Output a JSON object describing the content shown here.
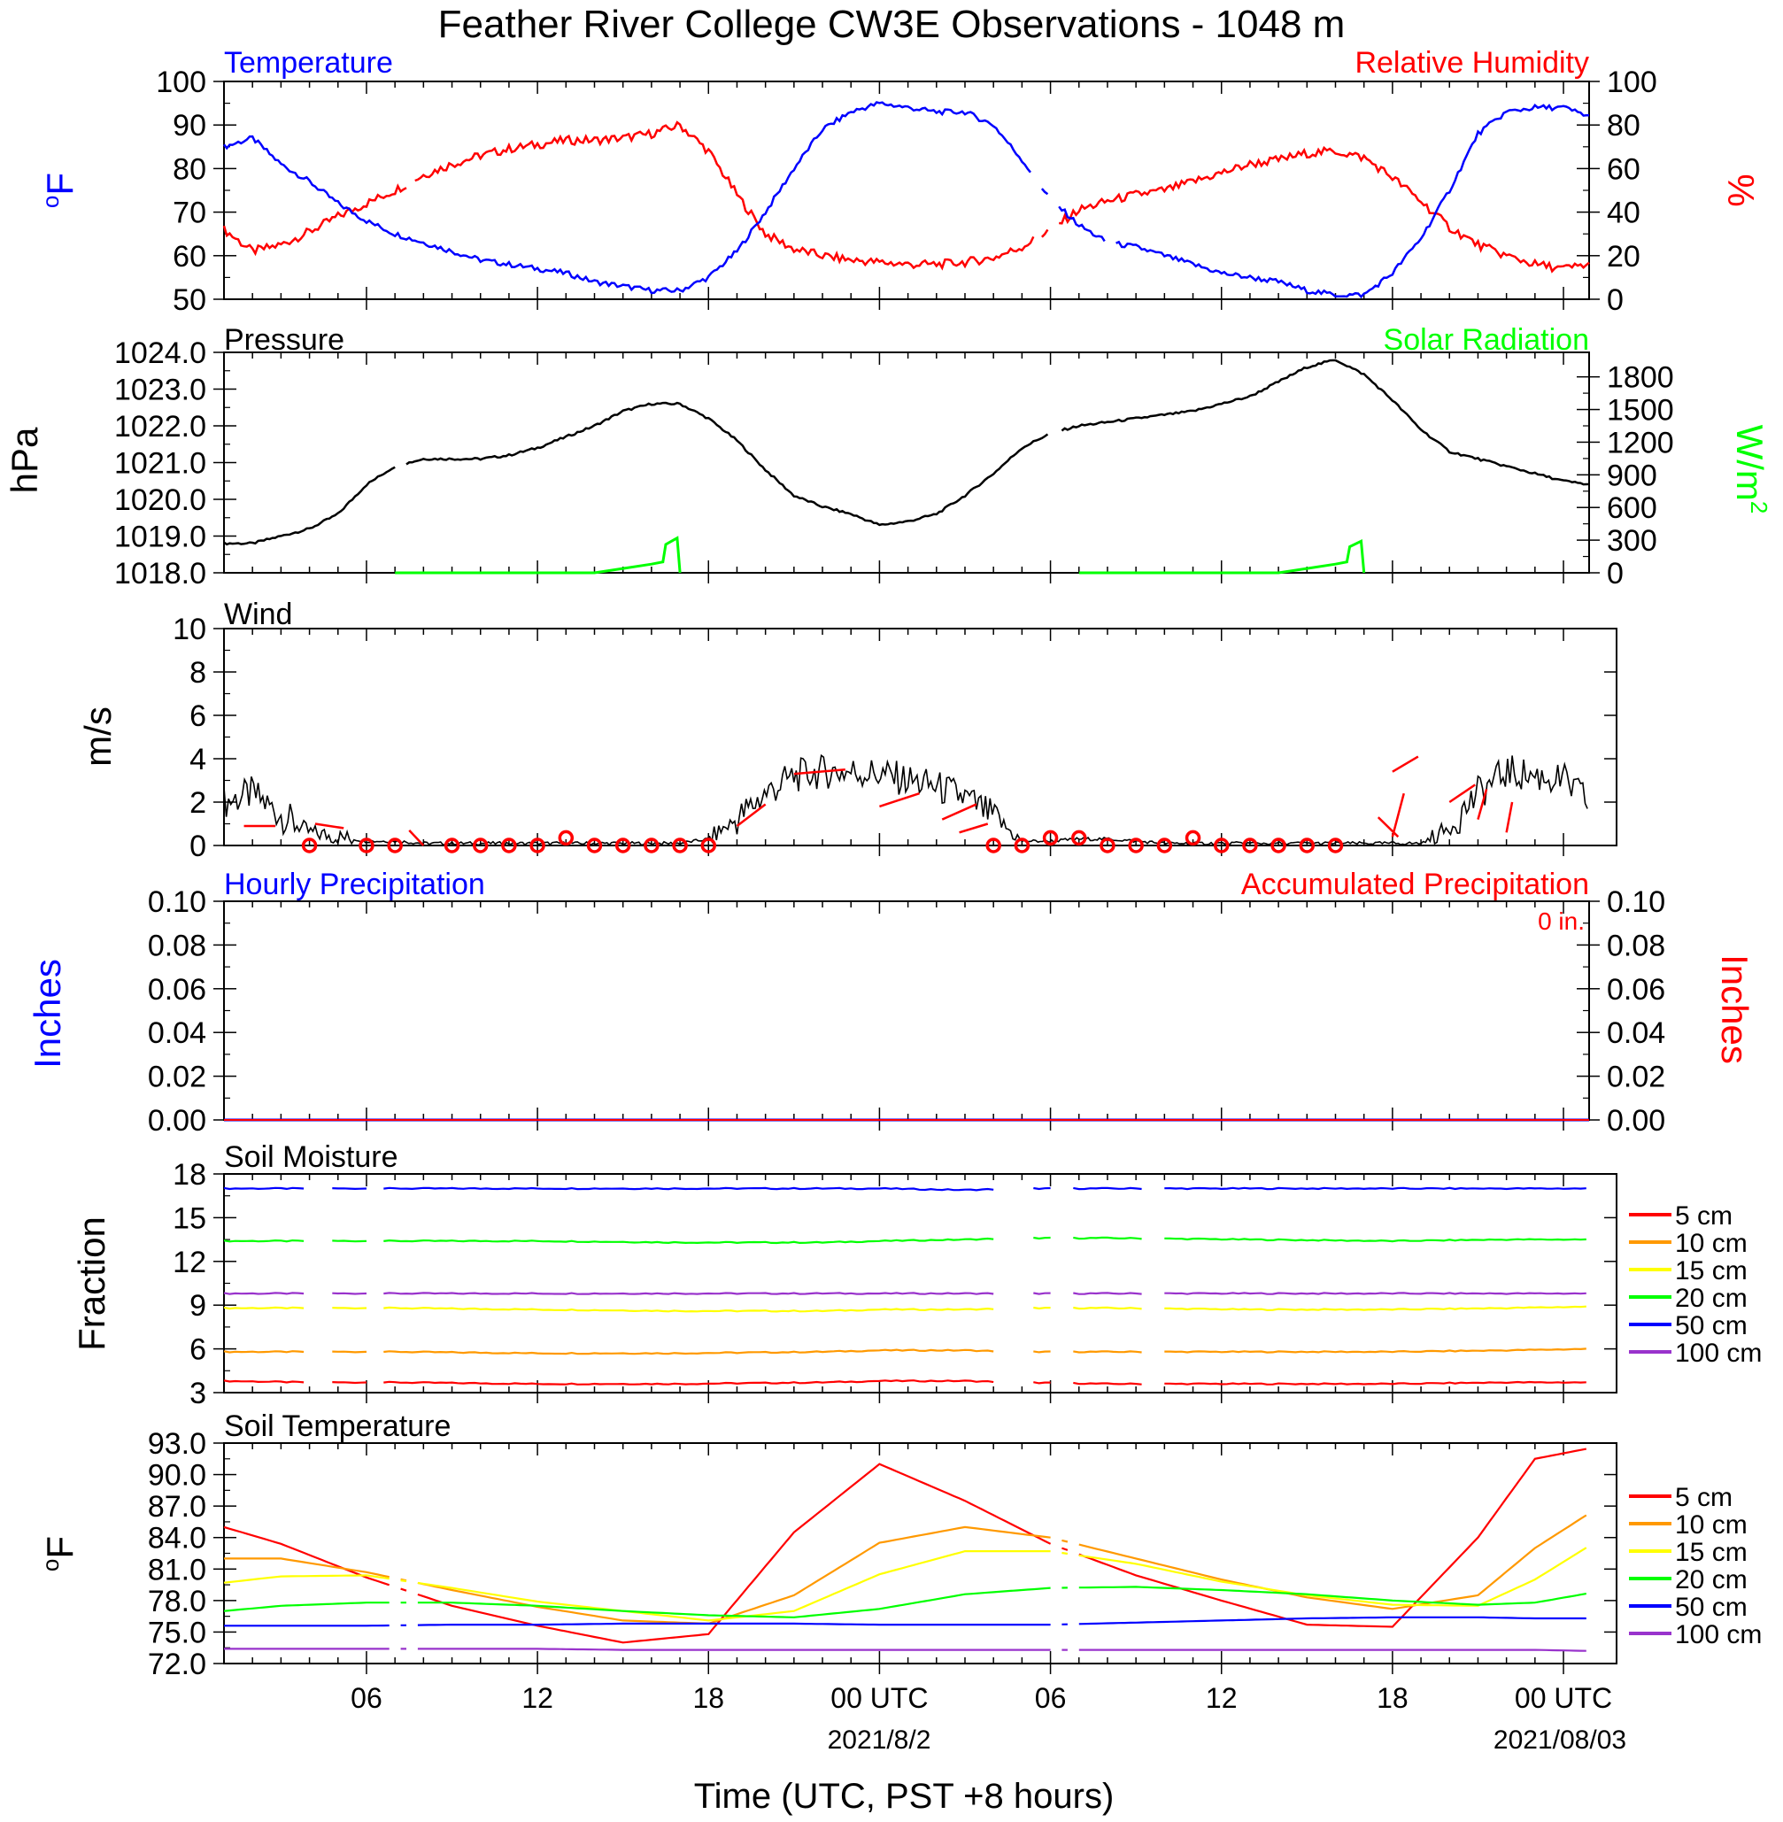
{
  "page": {
    "title": "Feather River College CW3E Observations - 1048 m",
    "x_axis_label": "Time (UTC, PST +8 hours)",
    "x_tick_labels": [
      "06",
      "12",
      "18",
      "00 UTC",
      "06",
      "12",
      "18",
      "00 UTC"
    ],
    "date_labels": [
      "2021/8/2",
      "2021/08/03"
    ]
  },
  "colors": {
    "temperature": "#0000ff",
    "humidity": "#ff0000",
    "pressure": "#000000",
    "solar": "#00ff00",
    "wind": "#000000",
    "wind_barb": "#ff0000",
    "hourly_precip": "#0000ff",
    "accum_precip": "#ff0000",
    "soil_5cm": "#ff0000",
    "soil_10cm": "#ff9900",
    "soil_15cm": "#ffff00",
    "soil_20cm": "#00ff00",
    "soil_50cm": "#0000ff",
    "soil_100cm": "#9933cc"
  },
  "chart_data": [
    {
      "type": "line",
      "panel": "temperature_humidity",
      "left_title": "Temperature",
      "right_title": "Relative Humidity",
      "ylabel_left": "oF",
      "ylabel_right": "%",
      "x_hours_utc": [
        1,
        2,
        3,
        4,
        5,
        6,
        7,
        8,
        9,
        10,
        11,
        12,
        13,
        14,
        15,
        16,
        17,
        18,
        19,
        20,
        21,
        22,
        23,
        24,
        25,
        26,
        27,
        28,
        29,
        30,
        31,
        32,
        33,
        34,
        35,
        36,
        37,
        38,
        39,
        40,
        41,
        42,
        43,
        44,
        45,
        46,
        47,
        48,
        48.9
      ],
      "ylim_left": [
        50,
        100
      ],
      "ylim_right": [
        0,
        100
      ],
      "yticks_left": [
        50,
        60,
        70,
        80,
        90,
        100
      ],
      "yticks_right": [
        0,
        20,
        40,
        60,
        80,
        100
      ],
      "series": [
        {
          "name": "Temperature",
          "axis": "left",
          "values": [
            85,
            87,
            81,
            77,
            72,
            68,
            65,
            63,
            61,
            59,
            58,
            57,
            56,
            54,
            53,
            52,
            52,
            55,
            61,
            70,
            80,
            89,
            93,
            95,
            94,
            93,
            93,
            90,
            82,
            73,
            67,
            63,
            62,
            60,
            58,
            56,
            55,
            54,
            52,
            51,
            51,
            56,
            64,
            75,
            88,
            93,
            94,
            94,
            92
          ]
        },
        {
          "name": "Relative Humidity",
          "axis": "right",
          "values": [
            32,
            22,
            25,
            31,
            38,
            44,
            50,
            57,
            62,
            66,
            69,
            71,
            73,
            73,
            74,
            76,
            80,
            68,
            48,
            30,
            23,
            20,
            18,
            17,
            16,
            16,
            17,
            19,
            24,
            32,
            41,
            45,
            48,
            50,
            54,
            58,
            62,
            64,
            67,
            68,
            65,
            56,
            45,
            33,
            25,
            20,
            16,
            14,
            16
          ]
        }
      ]
    },
    {
      "type": "line",
      "panel": "pressure_solar",
      "left_title": "Pressure",
      "right_title": "Solar Radiation",
      "ylabel_left": "hPa",
      "ylabel_right": "W/m2",
      "x_hours_utc": [
        1,
        2,
        3,
        4,
        5,
        6,
        7,
        8,
        9,
        10,
        11,
        12,
        13,
        14,
        15,
        16,
        17,
        18,
        19,
        20,
        21,
        22,
        23,
        24,
        25,
        26,
        27,
        28,
        29,
        30,
        31,
        32,
        33,
        34,
        35,
        36,
        37,
        38,
        39,
        40,
        41,
        42,
        43,
        44,
        45,
        46,
        47,
        48,
        48.9
      ],
      "ylim_left": [
        1018,
        1024
      ],
      "ylim_right": [
        0,
        2025
      ],
      "yticks_left": [
        1018.0,
        1019.0,
        1020.0,
        1021.0,
        1022.0,
        1023.0,
        1024.0
      ],
      "yticks_right": [
        0,
        300,
        600,
        900,
        1200,
        1500,
        1800
      ],
      "series": [
        {
          "name": "Pressure",
          "axis": "left",
          "values": [
            1018.8,
            1018.8,
            1019.0,
            1019.2,
            1019.6,
            1020.4,
            1020.9,
            1021.1,
            1021.1,
            1021.1,
            1021.2,
            1021.4,
            1021.7,
            1022.0,
            1022.4,
            1022.6,
            1022.6,
            1022.2,
            1021.6,
            1020.8,
            1020.1,
            1019.8,
            1019.6,
            1019.3,
            1019.4,
            1019.6,
            1020.1,
            1020.7,
            1021.4,
            1021.8,
            1022.0,
            1022.1,
            1022.2,
            1022.3,
            1022.4,
            1022.6,
            1022.8,
            1023.2,
            1023.6,
            1023.8,
            1023.4,
            1022.7,
            1021.9,
            1021.3,
            1021.1,
            1020.9,
            1020.7,
            1020.5,
            1020.4
          ]
        },
        {
          "name": "Solar Radiation",
          "axis": "right",
          "x_hours_utc": [
            7.0,
            14.0,
            15.0,
            16.0,
            16.4,
            16.5,
            16.9,
            17.0,
            31.0,
            38.0,
            39.0,
            40.0,
            40.4,
            40.5,
            40.9,
            41.0
          ],
          "values": [
            0,
            0,
            40,
            80,
            100,
            260,
            320,
            0,
            0,
            0,
            40,
            80,
            100,
            240,
            290,
            0
          ]
        }
      ]
    },
    {
      "type": "line",
      "panel": "wind",
      "left_title": "Wind",
      "ylabel_left": "m/s",
      "x_hours_utc": [
        1,
        2,
        3,
        4,
        5,
        6,
        7,
        8,
        9,
        10,
        11,
        12,
        13,
        14,
        15,
        16,
        17,
        18,
        19,
        20,
        21,
        22,
        23,
        24,
        25,
        26,
        27,
        28,
        29,
        30,
        31,
        32,
        33,
        34,
        35,
        36,
        37,
        38,
        39,
        40,
        41,
        42,
        43,
        44,
        45,
        46,
        47,
        48,
        48.9
      ],
      "ylim_left": [
        0,
        10
      ],
      "yticks_left": [
        0,
        2,
        4,
        6,
        8,
        10
      ],
      "series": [
        {
          "name": "Wind",
          "values": [
            2.0,
            2.4,
            1.4,
            0.6,
            0.4,
            0.2,
            0.2,
            0.1,
            0.1,
            0.1,
            0.1,
            0.1,
            0.1,
            0.1,
            0.1,
            0.1,
            0.1,
            0.3,
            1.2,
            2.4,
            3.2,
            3.4,
            3.4,
            3.3,
            3.0,
            2.7,
            2.2,
            1.3,
            0.2,
            0.2,
            0.3,
            0.3,
            0.2,
            0.1,
            0.1,
            0.1,
            0.1,
            0.1,
            0.1,
            0.1,
            0.1,
            0.1,
            0.1,
            0.8,
            2.4,
            3.4,
            3.2,
            3.0,
            2.0
          ]
        }
      ],
      "calm_circle_hours": [
        4,
        6,
        7,
        9,
        10,
        11,
        12,
        13,
        14,
        15,
        16,
        17,
        18,
        28,
        29,
        30,
        31,
        32,
        33,
        34,
        35,
        36,
        37,
        38,
        39,
        40
      ],
      "barbs": [
        [
          1.7,
          0.9,
          2.8,
          0.9
        ],
        [
          4.2,
          1.0,
          5.2,
          0.8
        ],
        [
          7.5,
          0.7,
          8.0,
          0.0
        ],
        [
          19.0,
          0.9,
          20.0,
          1.9
        ],
        [
          21.0,
          3.3,
          22.8,
          3.5
        ],
        [
          24.0,
          1.8,
          25.4,
          2.4
        ],
        [
          26.2,
          1.2,
          27.4,
          1.9
        ],
        [
          26.8,
          0.6,
          27.8,
          1.0
        ],
        [
          42.2,
          0.4,
          41.5,
          1.3
        ],
        [
          42.0,
          0.4,
          42.4,
          2.4
        ],
        [
          42.0,
          3.4,
          42.9,
          4.1
        ],
        [
          44.0,
          2.0,
          44.9,
          2.8
        ],
        [
          45.0,
          1.2,
          45.3,
          2.6
        ],
        [
          46.0,
          0.6,
          46.2,
          2.0
        ]
      ]
    },
    {
      "type": "line",
      "panel": "precipitation",
      "left_title": "Hourly Precipitation",
      "right_title": "Accumulated Precipitation",
      "ylabel_left": "Inches",
      "ylabel_right": "Inches",
      "annotation": "0 in.",
      "x_hours_utc": [
        1,
        48.9
      ],
      "ylim_left": [
        0,
        0.1
      ],
      "ylim_right": [
        0,
        0.1
      ],
      "yticks_left": [
        0.0,
        0.02,
        0.04,
        0.06,
        0.08,
        0.1
      ],
      "yticks_right": [
        0.0,
        0.02,
        0.04,
        0.06,
        0.08,
        0.1
      ],
      "series": [
        {
          "name": "Hourly Precipitation",
          "axis": "left",
          "values": [
            0,
            0
          ]
        },
        {
          "name": "Accumulated Precipitation",
          "axis": "right",
          "values": [
            0,
            0
          ]
        }
      ]
    },
    {
      "type": "line",
      "panel": "soil_moisture",
      "left_title": "Soil Moisture",
      "ylabel_left": "Fraction",
      "x_hours_utc": [
        1,
        4,
        7,
        12,
        17,
        22,
        24,
        27,
        29,
        32,
        37,
        42,
        46,
        48.9
      ],
      "ylim_left": [
        3,
        18
      ],
      "yticks_left": [
        3,
        6,
        9,
        12,
        15,
        18
      ],
      "legend": [
        "5 cm",
        "10 cm",
        "15 cm",
        "20 cm",
        "50 cm",
        "100 cm"
      ],
      "series": [
        {
          "name": "5 cm",
          "values": [
            3.8,
            3.7,
            3.7,
            3.6,
            3.6,
            3.7,
            3.8,
            3.8,
            3.7,
            3.6,
            3.6,
            3.6,
            3.7,
            3.7
          ]
        },
        {
          "name": "10 cm",
          "values": [
            5.8,
            5.8,
            5.8,
            5.7,
            5.7,
            5.8,
            5.9,
            5.9,
            5.8,
            5.8,
            5.8,
            5.8,
            5.9,
            6.0
          ]
        },
        {
          "name": "15 cm",
          "values": [
            8.8,
            8.8,
            8.8,
            8.7,
            8.6,
            8.6,
            8.7,
            8.7,
            8.8,
            8.8,
            8.7,
            8.7,
            8.8,
            8.9
          ]
        },
        {
          "name": "20 cm",
          "values": [
            13.4,
            13.4,
            13.4,
            13.4,
            13.3,
            13.3,
            13.4,
            13.5,
            13.6,
            13.6,
            13.5,
            13.4,
            13.5,
            13.5
          ]
        },
        {
          "name": "50 cm",
          "values": [
            17.0,
            17.0,
            17.0,
            17.0,
            17.0,
            17.0,
            17.0,
            16.9,
            17.0,
            17.0,
            17.0,
            17.0,
            17.0,
            17.0
          ]
        },
        {
          "name": "100 cm",
          "values": [
            9.8,
            9.8,
            9.8,
            9.8,
            9.8,
            9.8,
            9.8,
            9.8,
            9.8,
            9.8,
            9.8,
            9.8,
            9.8,
            9.8
          ]
        }
      ],
      "gaps_hours": [
        [
          4.0,
          4.8
        ],
        [
          6.1,
          6.6
        ],
        [
          28.0,
          29.2
        ],
        [
          30.1,
          30.6
        ],
        [
          33.2,
          33.9
        ]
      ]
    },
    {
      "type": "line",
      "panel": "soil_temperature",
      "left_title": "Soil Temperature",
      "ylabel_left": "oF",
      "x_hours_utc": [
        1,
        3,
        6,
        9,
        12,
        15,
        18,
        21,
        24,
        27,
        30,
        33,
        36,
        39,
        42,
        45,
        47,
        48.9
      ],
      "ylim_left": [
        72,
        93
      ],
      "yticks_left": [
        72.0,
        75.0,
        78.0,
        81.0,
        84.0,
        87.0,
        90.0,
        93.0
      ],
      "legend": [
        "5 cm",
        "10 cm",
        "15 cm",
        "20 cm",
        "50 cm",
        "100 cm"
      ],
      "series": [
        {
          "name": "5 cm",
          "values": [
            85.0,
            83.4,
            80.2,
            77.5,
            75.6,
            74.0,
            74.8,
            84.5,
            91.0,
            87.5,
            83.4,
            80.4,
            78.0,
            75.7,
            75.5,
            84.0,
            91.5,
            92.5
          ]
        },
        {
          "name": "10 cm",
          "values": [
            82.0,
            82.0,
            80.7,
            79.0,
            77.4,
            76.1,
            75.8,
            78.5,
            83.5,
            85.0,
            84.0,
            82.0,
            80.0,
            78.3,
            77.2,
            78.5,
            83.0,
            86.3
          ]
        },
        {
          "name": "15 cm",
          "values": [
            79.7,
            80.3,
            80.4,
            79.2,
            77.9,
            77.0,
            76.1,
            77.0,
            80.5,
            82.7,
            82.7,
            81.5,
            79.8,
            78.5,
            77.6,
            77.5,
            80.0,
            83.2
          ]
        },
        {
          "name": "20 cm",
          "values": [
            77.0,
            77.5,
            77.8,
            77.8,
            77.5,
            77.0,
            76.6,
            76.4,
            77.2,
            78.6,
            79.2,
            79.3,
            79.0,
            78.6,
            78.0,
            77.6,
            77.8,
            78.7
          ]
        },
        {
          "name": "50 cm",
          "values": [
            75.6,
            75.6,
            75.6,
            75.7,
            75.7,
            75.8,
            75.8,
            75.8,
            75.7,
            75.7,
            75.7,
            75.9,
            76.1,
            76.3,
            76.4,
            76.4,
            76.3,
            76.3
          ]
        },
        {
          "name": "100 cm",
          "values": [
            73.4,
            73.4,
            73.4,
            73.4,
            73.4,
            73.3,
            73.3,
            73.3,
            73.3,
            73.3,
            73.3,
            73.3,
            73.3,
            73.3,
            73.3,
            73.3,
            73.3,
            73.2
          ]
        }
      ]
    }
  ]
}
